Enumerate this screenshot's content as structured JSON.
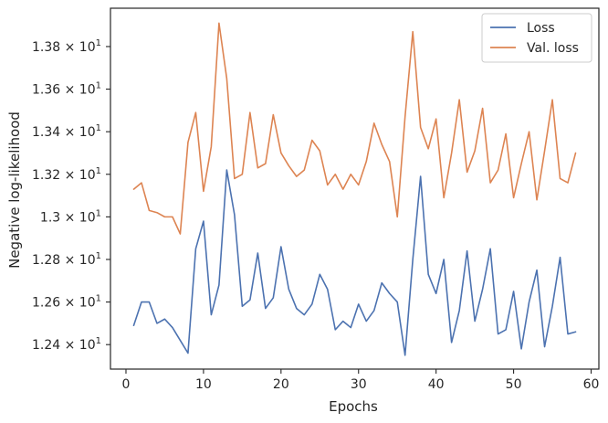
{
  "chart_data": {
    "type": "line",
    "xlabel": "Epochs",
    "ylabel": "Negative log-likelihood",
    "xlim": [
      -2,
      61
    ],
    "ylim": [
      12.285,
      13.98
    ],
    "x_ticks": [
      {
        "value": 0,
        "label": "0"
      },
      {
        "value": 10,
        "label": "10"
      },
      {
        "value": 20,
        "label": "20"
      },
      {
        "value": 30,
        "label": "30"
      },
      {
        "value": 40,
        "label": "40"
      },
      {
        "value": 50,
        "label": "50"
      },
      {
        "value": 60,
        "label": "60"
      }
    ],
    "y_ticks": [
      {
        "value": 12.4,
        "label": "1.24 × 10",
        "exp": "1"
      },
      {
        "value": 12.6,
        "label": "1.26 × 10",
        "exp": "1"
      },
      {
        "value": 12.8,
        "label": "1.28 × 10",
        "exp": "1"
      },
      {
        "value": 13.0,
        "label": "1.3 × 10",
        "exp": "1"
      },
      {
        "value": 13.2,
        "label": "1.32 × 10",
        "exp": "1"
      },
      {
        "value": 13.4,
        "label": "1.34 × 10",
        "exp": "1"
      },
      {
        "value": 13.6,
        "label": "1.36 × 10",
        "exp": "1"
      },
      {
        "value": 13.8,
        "label": "1.38 × 10",
        "exp": "1"
      }
    ],
    "legend_position": "top-right",
    "grid": false,
    "x": [
      1,
      2,
      3,
      4,
      5,
      6,
      7,
      8,
      9,
      10,
      11,
      12,
      13,
      14,
      15,
      16,
      17,
      18,
      19,
      20,
      21,
      22,
      23,
      24,
      25,
      26,
      27,
      28,
      29,
      30,
      31,
      32,
      33,
      34,
      35,
      36,
      37,
      38,
      39,
      40,
      41,
      42,
      43,
      44,
      45,
      46,
      47,
      48,
      49,
      50,
      51,
      52,
      53,
      54,
      55,
      56,
      57,
      58
    ],
    "series": [
      {
        "name": "Loss",
        "color": "#4c72b0",
        "values": [
          12.49,
          12.6,
          12.6,
          12.5,
          12.52,
          12.48,
          12.42,
          12.36,
          12.85,
          12.98,
          12.54,
          12.68,
          13.22,
          13.01,
          12.58,
          12.61,
          12.83,
          12.57,
          12.62,
          12.86,
          12.66,
          12.57,
          12.54,
          12.59,
          12.73,
          12.66,
          12.47,
          12.51,
          12.48,
          12.59,
          12.51,
          12.56,
          12.69,
          12.64,
          12.6,
          12.35,
          12.8,
          13.19,
          12.73,
          12.64,
          12.8,
          12.41,
          12.56,
          12.84,
          12.51,
          12.66,
          12.85,
          12.45,
          12.47,
          12.65,
          12.38,
          12.6,
          12.75,
          12.39,
          12.58,
          12.81,
          12.45,
          12.46
        ]
      },
      {
        "name": "Val. loss",
        "color": "#dd8452",
        "values": [
          13.13,
          13.16,
          13.03,
          13.02,
          13.0,
          13.0,
          12.92,
          13.35,
          13.49,
          13.12,
          13.33,
          13.91,
          13.65,
          13.18,
          13.2,
          13.49,
          13.23,
          13.25,
          13.48,
          13.3,
          13.24,
          13.19,
          13.22,
          13.36,
          13.31,
          13.15,
          13.2,
          13.13,
          13.2,
          13.15,
          13.26,
          13.44,
          13.34,
          13.26,
          13.0,
          13.47,
          13.87,
          13.42,
          13.32,
          13.46,
          13.09,
          13.3,
          13.55,
          13.21,
          13.31,
          13.51,
          13.16,
          13.22,
          13.39,
          13.09,
          13.25,
          13.4,
          13.08,
          13.31,
          13.55,
          13.18,
          13.16,
          13.3
        ]
      }
    ]
  }
}
